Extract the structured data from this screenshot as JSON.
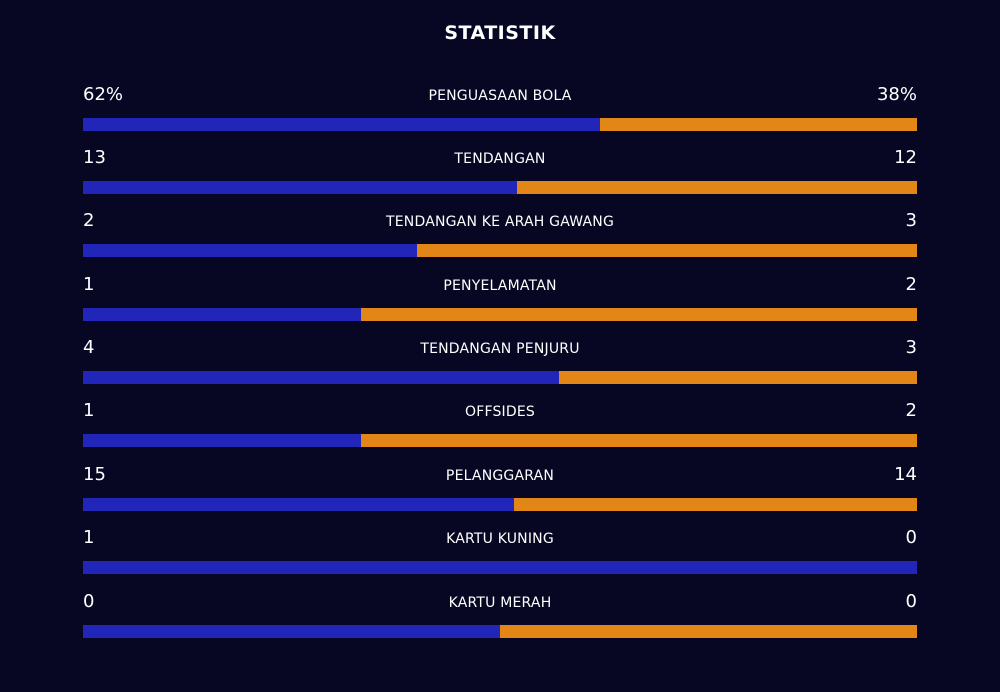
{
  "title": "STATISTIK",
  "colors": {
    "background": "#070723",
    "home": "#2226B8",
    "away": "#E38618",
    "text": "#FFFFFF"
  },
  "stats": [
    {
      "label": "PENGUASAAN BOLA",
      "home": "62%",
      "away": "38%",
      "home_share": 0.62
    },
    {
      "label": "TENDANGAN",
      "home": "13",
      "away": "12",
      "home_share": 0.52
    },
    {
      "label": "TENDANGAN KE ARAH GAWANG",
      "home": "2",
      "away": "3",
      "home_share": 0.4
    },
    {
      "label": "PENYELAMATAN",
      "home": "1",
      "away": "2",
      "home_share": 0.333
    },
    {
      "label": "TENDANGAN PENJURU",
      "home": "4",
      "away": "3",
      "home_share": 0.571
    },
    {
      "label": "OFFSIDES",
      "home": "1",
      "away": "2",
      "home_share": 0.333
    },
    {
      "label": "PELANGGARAN",
      "home": "15",
      "away": "14",
      "home_share": 0.517
    },
    {
      "label": "KARTU KUNING",
      "home": "1",
      "away": "0",
      "home_share": 1.0
    },
    {
      "label": "KARTU MERAH",
      "home": "0",
      "away": "0",
      "home_share": 0.5
    }
  ]
}
